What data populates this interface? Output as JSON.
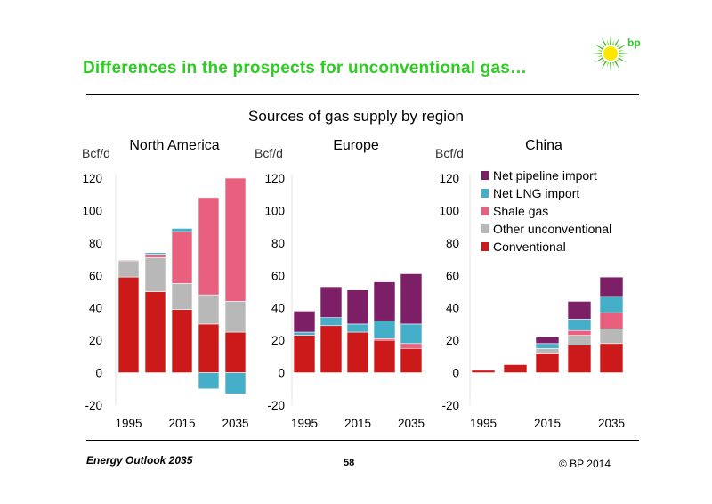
{
  "header": {
    "title": "Differences in the prospects for unconventional gas…",
    "logo_text": "bp"
  },
  "chart_subtitle": "Sources of gas supply by region",
  "footer": {
    "left": "Energy Outlook 2035",
    "page": "58",
    "right": "© BP 2014"
  },
  "colors": {
    "title_green": "#2ecc23",
    "Conventional": "#cc1a1a",
    "Other unconventional": "#b8b8b8",
    "Shale gas": "#e8607e",
    "Net LNG import": "#45aec8",
    "Net pipeline import": "#7c1f66",
    "logo_green": "#35b82e",
    "logo_yellow": "#ffe800"
  },
  "chart_data": [
    {
      "type": "bar",
      "stacked": true,
      "title": "North America",
      "ylabel": "Bcf/d",
      "ylim": [
        -20,
        120
      ],
      "yticks": [
        -20,
        0,
        20,
        40,
        60,
        80,
        100,
        120
      ],
      "categories": [
        "1995",
        "2005",
        "2015",
        "2025",
        "2035"
      ],
      "xtick_labels": [
        "1995",
        "2015",
        "2035"
      ],
      "series": [
        {
          "name": "Conventional",
          "values": [
            59,
            50,
            39,
            30,
            25
          ]
        },
        {
          "name": "Other unconventional",
          "values": [
            10,
            21,
            16,
            18,
            19
          ]
        },
        {
          "name": "Shale gas",
          "values": [
            0.5,
            2,
            32,
            60,
            76
          ]
        },
        {
          "name": "Net LNG import",
          "values": [
            0,
            1,
            2,
            -10,
            -13
          ]
        },
        {
          "name": "Net pipeline import",
          "values": [
            0,
            0,
            0,
            0,
            0
          ]
        }
      ]
    },
    {
      "type": "bar",
      "stacked": true,
      "title": "Europe",
      "ylabel": "Bcf/d",
      "ylim": [
        -20,
        120
      ],
      "yticks": [
        -20,
        0,
        20,
        40,
        60,
        80,
        100,
        120
      ],
      "categories": [
        "1995",
        "2005",
        "2015",
        "2025",
        "2035"
      ],
      "xtick_labels": [
        "1995",
        "2015",
        "2035"
      ],
      "series": [
        {
          "name": "Conventional",
          "values": [
            23,
            29,
            25,
            20,
            15
          ]
        },
        {
          "name": "Other unconventional",
          "values": [
            0,
            0,
            0,
            0,
            0
          ]
        },
        {
          "name": "Shale gas",
          "values": [
            0,
            0,
            0,
            1,
            3
          ]
        },
        {
          "name": "Net LNG import",
          "values": [
            2,
            5,
            5,
            11,
            12
          ]
        },
        {
          "name": "Net pipeline import",
          "values": [
            13,
            19,
            21,
            24,
            31
          ]
        }
      ]
    },
    {
      "type": "bar",
      "stacked": true,
      "title": "China",
      "ylabel": "Bcf/d",
      "ylim": [
        -20,
        120
      ],
      "yticks": [
        -20,
        0,
        20,
        40,
        60,
        80,
        100,
        120
      ],
      "categories": [
        "1995",
        "2005",
        "2015",
        "2025",
        "2035"
      ],
      "xtick_labels": [
        "1995",
        "2015",
        "2035"
      ],
      "legend": [
        "Net pipeline import",
        "Net LNG import",
        "Shale gas",
        "Other unconventional",
        "Conventional"
      ],
      "legend_position": "top",
      "series": [
        {
          "name": "Conventional",
          "values": [
            1.5,
            5,
            12,
            17,
            18
          ]
        },
        {
          "name": "Other unconventional",
          "values": [
            0,
            0,
            3,
            6,
            9
          ]
        },
        {
          "name": "Shale gas",
          "values": [
            0,
            0,
            0,
            3,
            10
          ]
        },
        {
          "name": "Net LNG import",
          "values": [
            0,
            0,
            3,
            7,
            10
          ]
        },
        {
          "name": "Net pipeline import",
          "values": [
            0,
            0,
            4,
            11,
            12
          ]
        }
      ]
    }
  ]
}
